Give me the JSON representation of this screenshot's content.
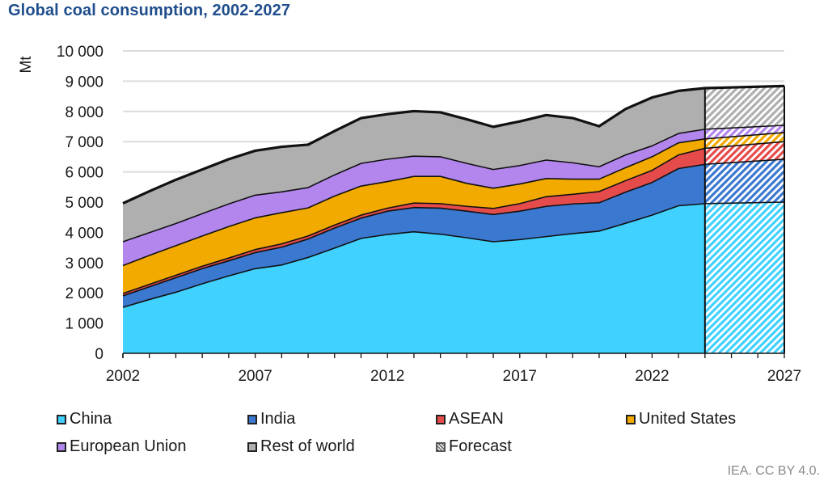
{
  "chart_data": {
    "type": "area",
    "stacked": true,
    "title": "Global coal consumption, 2002-2027",
    "ylabel": "Mt",
    "xlabel": "",
    "ylim": [
      0,
      10000
    ],
    "yticks": [
      0,
      1000,
      2000,
      3000,
      4000,
      5000,
      6000,
      7000,
      8000,
      9000,
      10000
    ],
    "ytick_labels": [
      "0",
      "1 000",
      "2 000",
      "3 000",
      "4 000",
      "5 000",
      "6 000",
      "7 000",
      "8 000",
      "9 000",
      "10 000"
    ],
    "xlim": [
      2002,
      2027
    ],
    "xticks": [
      2002,
      2007,
      2012,
      2017,
      2022,
      2027
    ],
    "xtick_labels": [
      "2002",
      "2007",
      "2012",
      "2017",
      "2022",
      "2027"
    ],
    "grid": true,
    "forecast_start": 2024,
    "legend_position": "bottom",
    "x": [
      2002,
      2003,
      2004,
      2005,
      2006,
      2007,
      2008,
      2009,
      2010,
      2011,
      2012,
      2013,
      2014,
      2015,
      2016,
      2017,
      2018,
      2019,
      2020,
      2021,
      2022,
      2023,
      2024,
      2027
    ],
    "series": [
      {
        "name": "China",
        "color": "#41d1fe",
        "values": [
          1520,
          1780,
          2020,
          2300,
          2560,
          2800,
          2920,
          3170,
          3480,
          3800,
          3930,
          4020,
          3940,
          3820,
          3690,
          3760,
          3860,
          3960,
          4040,
          4300,
          4570,
          4880,
          4950,
          5000
        ]
      },
      {
        "name": "India",
        "color": "#3b78d0",
        "values": [
          380,
          420,
          480,
          500,
          500,
          530,
          590,
          610,
          660,
          670,
          770,
          800,
          860,
          880,
          900,
          940,
          1000,
          980,
          940,
          1030,
          1080,
          1230,
          1300,
          1420
        ]
      },
      {
        "name": "ASEAN",
        "color": "#e64b4b",
        "values": [
          80,
          80,
          80,
          80,
          90,
          100,
          110,
          100,
          100,
          100,
          100,
          150,
          150,
          160,
          200,
          250,
          320,
          320,
          370,
          380,
          400,
          450,
          530,
          580
        ]
      },
      {
        "name": "United States",
        "color": "#f2a900",
        "values": [
          920,
          960,
          980,
          1000,
          1040,
          1050,
          1030,
          930,
          960,
          960,
          880,
          880,
          900,
          760,
          670,
          650,
          600,
          500,
          410,
          430,
          450,
          400,
          310,
          300
        ]
      },
      {
        "name": "European Union",
        "color": "#b386ee",
        "values": [
          790,
          750,
          730,
          740,
          750,
          750,
          690,
          670,
          700,
          750,
          740,
          670,
          650,
          660,
          620,
          610,
          610,
          540,
          410,
          420,
          360,
          310,
          320,
          240
        ]
      },
      {
        "name": "Rest of world",
        "color": "#afafaf",
        "values": [
          1270,
          1370,
          1450,
          1460,
          1480,
          1470,
          1490,
          1420,
          1450,
          1500,
          1490,
          1490,
          1470,
          1460,
          1410,
          1460,
          1490,
          1480,
          1340,
          1520,
          1600,
          1410,
          1360,
          1300
        ]
      }
    ]
  },
  "legend": {
    "items": [
      {
        "label": "China",
        "color": "#41d1fe"
      },
      {
        "label": "India",
        "color": "#3b78d0"
      },
      {
        "label": "ASEAN",
        "color": "#e64b4b"
      },
      {
        "label": "United States",
        "color": "#f2a900"
      },
      {
        "label": "European Union",
        "color": "#b386ee"
      },
      {
        "label": "Rest of world",
        "color": "#afafaf"
      },
      {
        "label": "Forecast",
        "color": "hatched"
      }
    ]
  },
  "source": "IEA. CC BY 4.0."
}
